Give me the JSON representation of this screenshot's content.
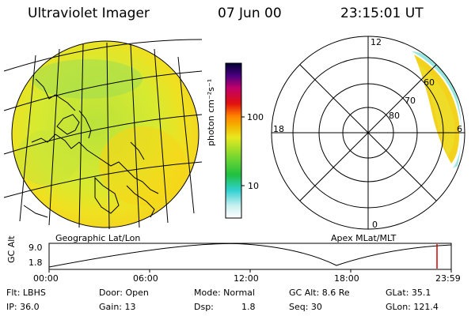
{
  "header": {
    "title": "Ultraviolet Imager",
    "date": "07 Jun 00",
    "time": "23:15:01 UT"
  },
  "colorbar": {
    "label": "photon cm⁻²s⁻¹",
    "ticks": [
      "100",
      "10"
    ]
  },
  "geo_panel": {
    "caption": "Geographic Lat/Lon"
  },
  "polar_panel": {
    "caption": "Apex MLat/MLT",
    "mlt_labels": {
      "top": "12",
      "left": "18",
      "right": "6",
      "bottom": "0"
    },
    "lat_labels": [
      "60",
      "70",
      "80"
    ]
  },
  "alt_plot": {
    "ylabel": "GC Alt",
    "yticks": [
      "9.0",
      "1.8"
    ],
    "xticks": [
      "00:00",
      "06:00",
      "12:00",
      "18:00",
      "23:59"
    ]
  },
  "info": {
    "flt": "Flt: LBHS",
    "door": "Door: Open",
    "mode": "Mode: Normal",
    "gc_alt": "GC Alt: 8.6 Re",
    "glat": "GLat: 35.1",
    "ip": "IP: 36.0",
    "gain": "Gain: 13",
    "dsp_label": "Dsp:",
    "dsp_value": "1.8",
    "seq": "Seq: 30",
    "glon": "GLon: 121.4"
  }
}
